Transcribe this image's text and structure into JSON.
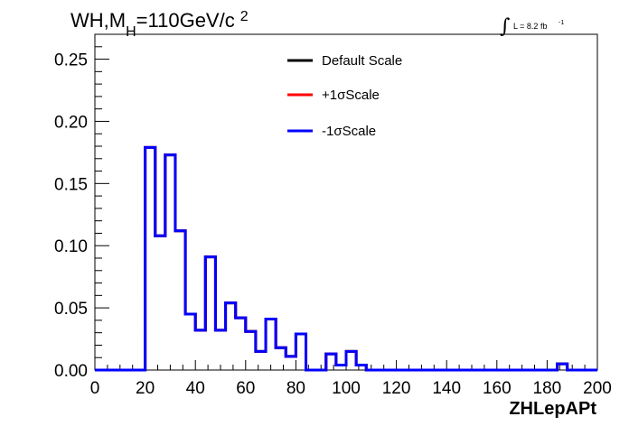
{
  "chart_data": {
    "type": "line",
    "style": "step-histogram",
    "title": {
      "prefix": "WH,M",
      "subscript": "H",
      "suffix": "=110GeV/c",
      "superscript": "2"
    },
    "luminosity": {
      "integral_sign": "∫",
      "text": "L = 8.2 fb",
      "superscript": "-1"
    },
    "xlabel": "ZHLepAPt",
    "ylabel": "",
    "xlim": [
      0,
      200
    ],
    "ylim": [
      0,
      0.27
    ],
    "x_ticks": [
      "0",
      "20",
      "40",
      "60",
      "80",
      "100",
      "120",
      "140",
      "160",
      "180",
      "200"
    ],
    "y_ticks": [
      "0.00",
      "0.05",
      "0.10",
      "0.15",
      "0.20",
      "0.25"
    ],
    "grid": false,
    "legend_position": "top-center",
    "bin_width": 4,
    "bin_edges_start": 0,
    "series": [
      {
        "name": "Default Scale",
        "color": "#000000",
        "values": [
          0,
          0,
          0,
          0,
          0,
          0.179,
          0.108,
          0.173,
          0.112,
          0.045,
          0.032,
          0.091,
          0.032,
          0.054,
          0.042,
          0.031,
          0.015,
          0.041,
          0.018,
          0.011,
          0.029,
          0,
          0,
          0.013,
          0.004,
          0.015,
          0.004,
          0,
          0,
          0,
          0,
          0,
          0,
          0,
          0,
          0,
          0,
          0,
          0,
          0,
          0,
          0,
          0,
          0,
          0,
          0,
          0.005,
          0,
          0,
          0
        ]
      },
      {
        "name": "+1σScale",
        "color": "#ff0000",
        "values": [
          0,
          0,
          0,
          0,
          0,
          0.179,
          0.108,
          0.173,
          0.112,
          0.045,
          0.032,
          0.091,
          0.032,
          0.054,
          0.042,
          0.031,
          0.015,
          0.041,
          0.018,
          0.011,
          0.029,
          0,
          0,
          0.013,
          0.004,
          0.015,
          0.004,
          0,
          0,
          0,
          0,
          0,
          0,
          0,
          0,
          0,
          0,
          0,
          0,
          0,
          0,
          0,
          0,
          0,
          0,
          0,
          0.005,
          0,
          0,
          0
        ]
      },
      {
        "name": "-1σScale",
        "color": "#0000ff",
        "values": [
          0,
          0,
          0,
          0,
          0,
          0.179,
          0.108,
          0.173,
          0.112,
          0.045,
          0.032,
          0.091,
          0.032,
          0.054,
          0.042,
          0.031,
          0.015,
          0.041,
          0.018,
          0.011,
          0.029,
          0,
          0,
          0.013,
          0.004,
          0.015,
          0.004,
          0,
          0,
          0,
          0,
          0,
          0,
          0,
          0,
          0,
          0,
          0,
          0,
          0,
          0,
          0,
          0,
          0,
          0,
          0,
          0.005,
          0,
          0,
          0
        ]
      }
    ]
  }
}
